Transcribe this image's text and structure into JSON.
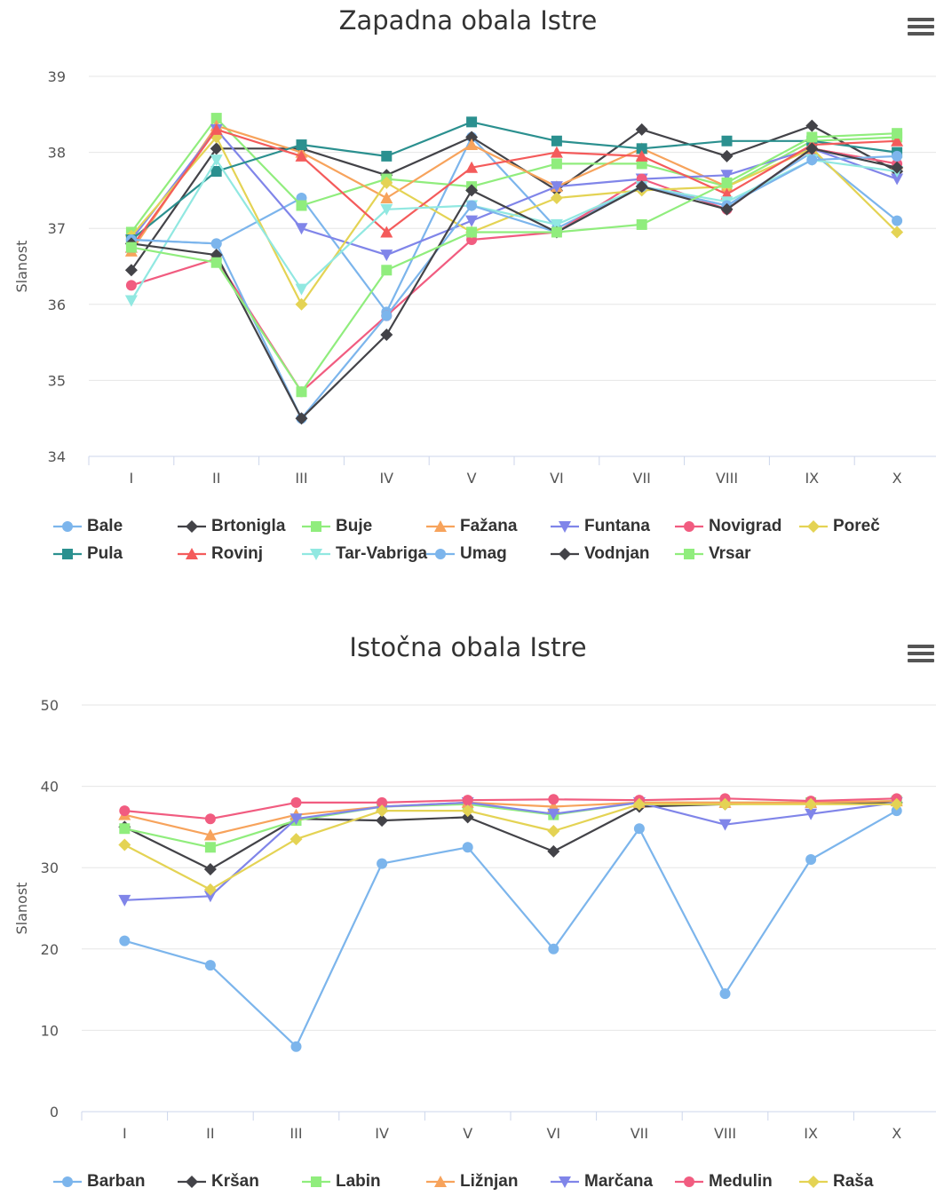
{
  "charts": [
    {
      "title": "Zapadna obala Istre",
      "ylabel": "Slanost",
      "ylim": [
        34,
        39
      ],
      "yticks": [
        34,
        35,
        36,
        37,
        38,
        39
      ],
      "categories": [
        "I",
        "II",
        "III",
        "IV",
        "V",
        "VI",
        "VII",
        "VIII",
        "IX",
        "X"
      ],
      "series": [
        {
          "name": "Bale",
          "color": "#7cb5ec",
          "marker": "circle",
          "values": [
            36.85,
            36.8,
            37.4,
            35.9,
            38.2,
            37.0,
            37.55,
            37.3,
            38.0,
            37.1
          ]
        },
        {
          "name": "Brtonigla",
          "color": "#434348",
          "marker": "diamond",
          "values": [
            36.45,
            38.05,
            38.05,
            37.7,
            38.2,
            37.5,
            38.3,
            37.95,
            38.35,
            37.75
          ]
        },
        {
          "name": "Buje",
          "color": "#90ed7d",
          "marker": "square",
          "values": [
            36.95,
            38.45,
            37.3,
            37.65,
            37.55,
            37.85,
            37.85,
            37.55,
            38.15,
            38.2
          ]
        },
        {
          "name": "Fažana",
          "color": "#f7a35c",
          "marker": "triangle",
          "values": [
            36.7,
            38.35,
            38.0,
            37.4,
            38.1,
            37.55,
            38.05,
            37.55,
            38.05,
            37.85
          ]
        },
        {
          "name": "Funtana",
          "color": "#8085e9",
          "marker": "triangle-down",
          "values": [
            36.85,
            38.3,
            37.0,
            36.65,
            37.1,
            37.55,
            37.65,
            37.7,
            38.05,
            37.65
          ]
        },
        {
          "name": "Novigrad",
          "color": "#f15c80",
          "marker": "circle",
          "values": [
            36.25,
            36.6,
            34.85,
            35.85,
            36.85,
            36.95,
            37.65,
            37.25,
            38.05,
            37.85
          ]
        },
        {
          "name": "Poreč",
          "color": "#e4d354",
          "marker": "diamond",
          "values": [
            36.9,
            38.2,
            36.0,
            37.6,
            36.95,
            37.4,
            37.5,
            37.55,
            38.05,
            36.95
          ]
        },
        {
          "name": "Pula",
          "color": "#2b908f",
          "marker": "square",
          "values": [
            36.85,
            37.75,
            38.1,
            37.95,
            38.4,
            38.15,
            38.05,
            38.15,
            38.15,
            38.0
          ]
        },
        {
          "name": "Rovinj",
          "color": "#f45b5b",
          "marker": "triangle",
          "values": [
            36.75,
            38.3,
            37.95,
            36.95,
            37.8,
            38.0,
            37.95,
            37.45,
            38.1,
            38.15
          ]
        },
        {
          "name": "Tar-Vabriga",
          "color": "#91e8e1",
          "marker": "triangle-down",
          "values": [
            36.05,
            37.9,
            36.2,
            37.25,
            37.3,
            37.05,
            37.55,
            37.35,
            37.9,
            37.75
          ]
        },
        {
          "name": "Umag",
          "color": "#7cb5ec",
          "marker": "circle",
          "values": [
            36.85,
            36.8,
            34.5,
            35.85,
            37.3,
            36.95,
            37.55,
            37.3,
            37.9,
            37.95
          ]
        },
        {
          "name": "Vodnjan",
          "color": "#434348",
          "marker": "diamond",
          "values": [
            36.8,
            36.65,
            34.5,
            35.6,
            37.5,
            36.95,
            37.55,
            37.25,
            38.05,
            37.8
          ]
        },
        {
          "name": "Vrsar",
          "color": "#90ed7d",
          "marker": "square",
          "values": [
            36.75,
            36.55,
            34.85,
            36.45,
            36.95,
            36.95,
            37.05,
            37.6,
            38.2,
            38.25
          ]
        }
      ],
      "legend_rows": [
        [
          "Bale",
          "Brtonigla",
          "Buje",
          "Fažana",
          "Funtana",
          "Novigrad",
          "Poreč"
        ],
        [
          "Pula",
          "Rovinj",
          "Tar-Vabriga",
          "Umag",
          "Vodnjan",
          "Vrsar"
        ]
      ]
    },
    {
      "title": "Istočna obala Istre",
      "ylabel": "Slanost",
      "ylim": [
        0,
        50
      ],
      "yticks": [
        0,
        10,
        20,
        30,
        40,
        50
      ],
      "categories": [
        "I",
        "II",
        "III",
        "IV",
        "V",
        "VI",
        "VII",
        "VIII",
        "IX",
        "X"
      ],
      "series": [
        {
          "name": "Barban",
          "color": "#7cb5ec",
          "marker": "circle",
          "values": [
            21.0,
            18.0,
            8.0,
            30.5,
            32.5,
            20.0,
            34.8,
            14.5,
            31.0,
            37.0
          ]
        },
        {
          "name": "Kršan",
          "color": "#434348",
          "marker": "diamond",
          "values": [
            35.0,
            29.8,
            36.0,
            35.8,
            36.2,
            32.0,
            37.5,
            37.8,
            38.0,
            38.0
          ]
        },
        {
          "name": "Labin",
          "color": "#90ed7d",
          "marker": "square",
          "values": [
            34.8,
            32.5,
            35.8,
            37.5,
            37.8,
            36.5,
            38.0,
            38.0,
            38.0,
            38.2
          ]
        },
        {
          "name": "Ližnjan",
          "color": "#f7a35c",
          "marker": "triangle",
          "values": [
            36.5,
            34.0,
            36.5,
            37.5,
            38.0,
            37.5,
            38.0,
            38.0,
            38.0,
            38.2
          ]
        },
        {
          "name": "Marčana",
          "color": "#8085e9",
          "marker": "triangle-down",
          "values": [
            26.0,
            26.5,
            36.0,
            37.5,
            38.0,
            36.6,
            38.0,
            35.3,
            36.6,
            38.0
          ]
        },
        {
          "name": "Medulin",
          "color": "#f15c80",
          "marker": "circle",
          "values": [
            37.0,
            36.0,
            38.0,
            38.0,
            38.3,
            38.4,
            38.3,
            38.5,
            38.2,
            38.5
          ]
        },
        {
          "name": "Raša",
          "color": "#e4d354",
          "marker": "diamond",
          "values": [
            32.8,
            27.3,
            33.5,
            37.0,
            37.0,
            34.5,
            37.8,
            37.8,
            37.8,
            37.8
          ]
        }
      ],
      "legend_rows": [
        [
          "Barban",
          "Kršan",
          "Labin",
          "Ližnjan",
          "Marčana",
          "Medulin",
          "Raša"
        ]
      ]
    }
  ]
}
